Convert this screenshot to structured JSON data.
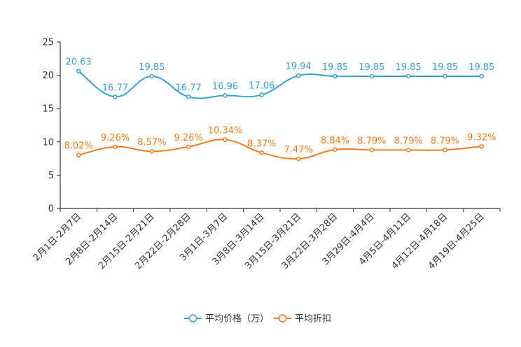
{
  "chart_data": {
    "type": "line",
    "title": "",
    "xlabel": "",
    "ylabel": "",
    "ylim": [
      0,
      25
    ],
    "yticks": [
      0,
      5,
      10,
      15,
      20,
      25
    ],
    "grid": false,
    "legend_position": "bottom-center",
    "categories": [
      "2月1日-2月7日",
      "2月8日-2月14日",
      "2月15日-2月21日",
      "2月22日-2月28日",
      "3月1日-3月7日",
      "3月8日-3月14日",
      "3月15日-3月21日",
      "3月22日-3月28日",
      "3月29日-4月4日",
      "4月5日-4月11日",
      "4月12日-4月18日",
      "4月19日-4月25日"
    ],
    "series": [
      {
        "name": "平均价格（万）",
        "color": "#3a9fd1",
        "values": [
          20.63,
          16.77,
          19.85,
          16.77,
          16.96,
          17.06,
          19.94,
          19.85,
          19.85,
          19.85,
          19.85,
          19.85
        ],
        "labels": [
          "20.63",
          "16.77",
          "19.85",
          "16.77",
          "16.96",
          "17.06",
          "19.94",
          "19.85",
          "19.85",
          "19.85",
          "19.85",
          "19.85"
        ]
      },
      {
        "name": "平均折扣",
        "color": "#f47c20",
        "values": [
          8.02,
          9.26,
          8.57,
          9.26,
          10.34,
          8.37,
          7.47,
          8.84,
          8.79,
          8.79,
          8.79,
          9.32
        ],
        "labels": [
          "8.02%",
          "9.26%",
          "8.57%",
          "9.26%",
          "10.34%",
          "8.37%",
          "7.47%",
          "8.84%",
          "8.79%",
          "8.79%",
          "8.79%",
          "9.32%"
        ]
      }
    ]
  }
}
